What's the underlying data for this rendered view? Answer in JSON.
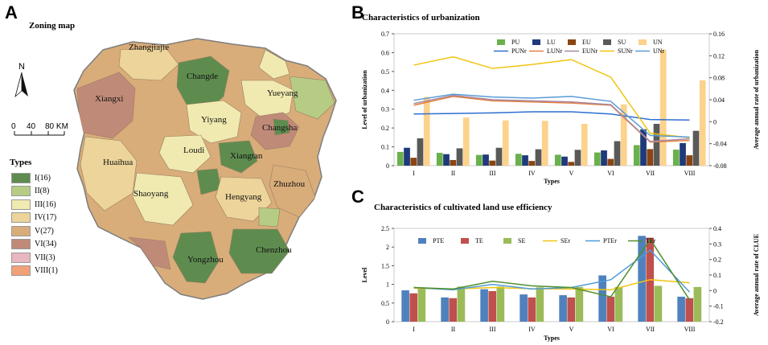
{
  "panels": {
    "a": {
      "letter": "A",
      "title": "Zoning map"
    },
    "b": {
      "letter": "B"
    },
    "c": {
      "letter": "C"
    }
  },
  "map": {
    "north_label": "N",
    "scale": {
      "ticks": [
        "0",
        "40",
        "80 KM"
      ]
    },
    "legend_title": "Types",
    "legend": [
      {
        "label": "I(16)",
        "color": "#5e8c4f"
      },
      {
        "label": "II(8)",
        "color": "#b6cc84"
      },
      {
        "label": "III(16)",
        "color": "#f0eab0"
      },
      {
        "label": "IV(17)",
        "color": "#ecd49a"
      },
      {
        "label": "V(27)",
        "color": "#d8ad7a"
      },
      {
        "label": "VI(34)",
        "color": "#c08a78"
      },
      {
        "label": "VII(3)",
        "color": "#e8b7bf"
      },
      {
        "label": "VIII(1)",
        "color": "#f1a178"
      }
    ],
    "places": [
      "Zhangjiajie",
      "Changde",
      "Yueyang",
      "Xiangxi",
      "Yiyang",
      "Changsha",
      "Loudi",
      "Xiangtan",
      "Huaihua",
      "Shaoyang",
      "Hengyang",
      "Zhuzhou",
      "Yongzhou",
      "Chenzhou"
    ]
  },
  "chart_data": [
    {
      "type": "bar",
      "title": "Characteristics of urbanization",
      "xlabel": "Types",
      "ylabel": "Level of urbanization",
      "y2label": "Average annual rate of urbanization",
      "ylim": [
        0,
        0.7
      ],
      "yticks": [
        "0",
        "0.1",
        "0.2",
        "0.3",
        "0.4",
        "0.5",
        "0.6",
        "0.7"
      ],
      "y2lim": [
        -0.08,
        0.16
      ],
      "y2ticks": [
        "-0.08",
        "-0.04",
        "0",
        "0.04",
        "0.08",
        "0.12",
        "0.16"
      ],
      "categories": [
        "I",
        "II",
        "III",
        "IV",
        "V",
        "VI",
        "VII",
        "VIII"
      ],
      "series": [
        {
          "name": "PU",
          "color": "#6ab04c",
          "values": [
            0.073,
            0.068,
            0.057,
            0.063,
            0.058,
            0.07,
            0.109,
            0.085
          ]
        },
        {
          "name": "LU",
          "color": "#1f3a7a",
          "values": [
            0.095,
            0.061,
            0.059,
            0.055,
            0.048,
            0.081,
            0.193,
            0.12
          ]
        },
        {
          "name": "EU",
          "color": "#8b4513",
          "values": [
            0.042,
            0.03,
            0.027,
            0.025,
            0.02,
            0.036,
            0.088,
            0.055
          ]
        },
        {
          "name": "SU",
          "color": "#595959",
          "values": [
            0.145,
            0.092,
            0.095,
            0.087,
            0.084,
            0.13,
            0.222,
            0.185
          ]
        },
        {
          "name": "UN",
          "color": "#fcd28c",
          "values": [
            0.365,
            0.255,
            0.24,
            0.238,
            0.222,
            0.325,
            0.615,
            0.453
          ]
        }
      ],
      "line_series": [
        {
          "name": "PUNr",
          "color": "#2f6fd1",
          "values": [
            0.014,
            0.015,
            0.016,
            0.018,
            0.018,
            0.014,
            0.004,
            0.003
          ]
        },
        {
          "name": "LUNr",
          "color": "#e67e3a",
          "values": [
            0.03,
            0.046,
            0.038,
            0.036,
            0.034,
            0.03,
            -0.037,
            -0.034
          ]
        },
        {
          "name": "EUNr",
          "color": "#a68aa6",
          "values": [
            0.033,
            0.048,
            0.04,
            0.038,
            0.036,
            0.031,
            -0.036,
            -0.031
          ]
        },
        {
          "name": "SUNr",
          "color": "#f2c40f",
          "values": [
            0.103,
            0.118,
            0.097,
            0.104,
            0.113,
            0.081,
            -0.021,
            -0.029
          ]
        },
        {
          "name": "UNr",
          "color": "#5b9bd5",
          "values": [
            0.039,
            0.05,
            0.045,
            0.043,
            0.046,
            0.037,
            -0.025,
            -0.028
          ]
        }
      ]
    },
    {
      "type": "bar",
      "title": "Characteristics of cultivated land use efficiency",
      "xlabel": "Types",
      "ylabel": "Level",
      "y2label": "Average annual rate of CLUE",
      "ylim": [
        0,
        2.5
      ],
      "yticks": [
        "0",
        "0.5",
        "1",
        "1.5",
        "2",
        "2.5"
      ],
      "y2lim": [
        -0.2,
        0.4
      ],
      "y2ticks": [
        "-0.2",
        "-0.1",
        "0",
        "0.1",
        "0.2",
        "0.3",
        "0.4"
      ],
      "categories": [
        "I",
        "II",
        "III",
        "IV",
        "V",
        "VI",
        "VII",
        "VIII"
      ],
      "series": [
        {
          "name": "PTE",
          "color": "#4f81bd",
          "values": [
            0.84,
            0.65,
            0.87,
            0.73,
            0.71,
            1.24,
            2.3,
            0.67
          ]
        },
        {
          "name": "TE",
          "color": "#c0504d",
          "values": [
            0.76,
            0.63,
            0.82,
            0.65,
            0.65,
            0.67,
            2.25,
            0.63
          ]
        },
        {
          "name": "SE",
          "color": "#9bbb59",
          "values": [
            0.9,
            0.94,
            0.94,
            0.92,
            0.93,
            0.93,
            0.96,
            0.93
          ]
        }
      ],
      "line_series": [
        {
          "name": "SEr",
          "color": "#f2c40f",
          "values": [
            0.015,
            0.01,
            0.02,
            0.012,
            0.01,
            0.005,
            0.07,
            0.05
          ]
        },
        {
          "name": "PTEr",
          "color": "#4f9bd8",
          "values": [
            0.02,
            0.005,
            0.04,
            0.01,
            0.02,
            0.07,
            0.26,
            -0.01
          ]
        },
        {
          "name": "TEr",
          "color": "#4f8f2f",
          "values": [
            0.02,
            0.01,
            0.06,
            0.03,
            0.02,
            -0.04,
            0.33,
            -0.06
          ]
        }
      ]
    }
  ]
}
